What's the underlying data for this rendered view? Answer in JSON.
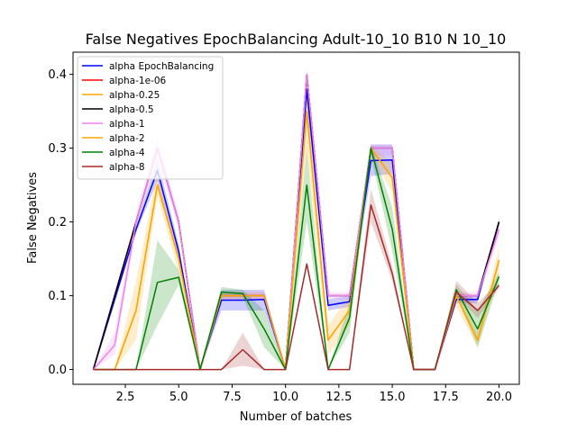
{
  "chart_data": {
    "type": "line",
    "title": "False Negatives EpochBalancing Adult-10_10 B10 N 10_10",
    "xlabel": "Number of batches",
    "ylabel": "False Negatives",
    "xlim": [
      0.05,
      20.95
    ],
    "ylim": [
      -0.02,
      0.43
    ],
    "xticks": [
      2.5,
      5.0,
      7.5,
      10.0,
      12.5,
      15.0,
      17.5,
      20.0
    ],
    "xtick_labels": [
      "2.5",
      "5.0",
      "7.5",
      "10.0",
      "12.5",
      "15.0",
      "17.5",
      "20.0"
    ],
    "yticks": [
      0.0,
      0.1,
      0.2,
      0.3,
      0.4
    ],
    "ytick_labels": [
      "0.0",
      "0.1",
      "0.2",
      "0.3",
      "0.4"
    ],
    "grid": false,
    "legend_position": "top-left",
    "x": [
      1,
      2,
      3,
      4,
      5,
      6,
      7,
      8,
      9,
      10,
      11,
      12,
      13,
      14,
      15,
      16,
      17,
      18,
      19,
      20
    ],
    "series": [
      {
        "name": "alpha EpochBalancing",
        "color": "#0000ff",
        "values": [
          0,
          0.095,
          0.19,
          0.27,
          0.16,
          0,
          0.094,
          0.094,
          0.095,
          0,
          0.38,
          0.087,
          0.092,
          0.283,
          0.284,
          0,
          0,
          0.095,
          0.095,
          0.2
        ],
        "band": [
          [
            0,
            0
          ],
          [
            0.09,
            0.1
          ],
          [
            0.185,
            0.195
          ],
          [
            0.255,
            0.285
          ],
          [
            0.15,
            0.17
          ],
          [
            0,
            0
          ],
          [
            0.08,
            0.108
          ],
          [
            0.08,
            0.108
          ],
          [
            0.08,
            0.108
          ],
          [
            0,
            0
          ],
          [
            0.36,
            0.4
          ],
          [
            0.08,
            0.095
          ],
          [
            0.085,
            0.1
          ],
          [
            0.262,
            0.305
          ],
          [
            0.265,
            0.305
          ],
          [
            0,
            0
          ],
          [
            0,
            0
          ],
          [
            0.09,
            0.1
          ],
          [
            0.09,
            0.1
          ],
          [
            0.195,
            0.205
          ]
        ]
      },
      {
        "name": "alpha-1e-06",
        "color": "#ff0000",
        "values": [
          0,
          0.1,
          0.2,
          0.3,
          0.2,
          0,
          0.1,
          0.1,
          0.1,
          0,
          0.4,
          0.1,
          0.1,
          0.3,
          0.3,
          0,
          0,
          0.1,
          0.1,
          0.2
        ],
        "band": null
      },
      {
        "name": "alpha-0.25",
        "color": "#ffa500",
        "values": [
          0,
          0,
          0.08,
          0.25,
          0.15,
          0,
          0.1,
          0.1,
          0.1,
          0,
          0.35,
          0.04,
          0.08,
          0.3,
          0.26,
          0,
          0,
          0.1,
          0.04,
          0.148
        ],
        "band": [
          [
            0,
            0
          ],
          [
            0,
            0
          ],
          [
            0.04,
            0.12
          ],
          [
            0.235,
            0.27
          ],
          [
            0.13,
            0.17
          ],
          [
            0,
            0
          ],
          [
            0.095,
            0.105
          ],
          [
            0.095,
            0.105
          ],
          [
            0.095,
            0.105
          ],
          [
            0,
            0
          ],
          [
            0.3,
            0.39
          ],
          [
            0.02,
            0.06
          ],
          [
            0.06,
            0.1
          ],
          [
            0.29,
            0.305
          ],
          [
            0.24,
            0.28
          ],
          [
            0,
            0
          ],
          [
            0,
            0
          ],
          [
            0.085,
            0.11
          ],
          [
            0.03,
            0.05
          ],
          [
            0.13,
            0.165
          ]
        ]
      },
      {
        "name": "alpha-0.5",
        "color": "#000000",
        "values": [
          0,
          0.1,
          0.2,
          0.3,
          0.2,
          0,
          0.1,
          0.1,
          0.1,
          0,
          0.4,
          0.1,
          0.1,
          0.3,
          0.3,
          0,
          0,
          0.1,
          0.1,
          0.2
        ],
        "band": null
      },
      {
        "name": "alpha-1",
        "color": "#ee82ee",
        "values": [
          0,
          0.033,
          0.2,
          0.3,
          0.2,
          0,
          0.1,
          0.1,
          0.1,
          0,
          0.4,
          0.1,
          0.1,
          0.3,
          0.3,
          0,
          0,
          0.1,
          0.1,
          0.19
        ],
        "band": [
          [
            0,
            0
          ],
          [
            0.02,
            0.05
          ],
          [
            0.19,
            0.21
          ],
          [
            0.285,
            0.315
          ],
          [
            0.19,
            0.21
          ],
          [
            0,
            0
          ],
          [
            0.095,
            0.105
          ],
          [
            0.095,
            0.105
          ],
          [
            0.095,
            0.105
          ],
          [
            0,
            0
          ],
          [
            0.39,
            0.41
          ],
          [
            0.095,
            0.105
          ],
          [
            0.095,
            0.105
          ],
          [
            0.29,
            0.305
          ],
          [
            0.29,
            0.305
          ],
          [
            0,
            0
          ],
          [
            0,
            0
          ],
          [
            0.095,
            0.105
          ],
          [
            0.095,
            0.105
          ],
          [
            0.18,
            0.2
          ]
        ]
      },
      {
        "name": "alpha-2",
        "color": "#ffa500",
        "values": [
          0,
          0,
          0.08,
          0.25,
          0.15,
          0,
          0.1,
          0.1,
          0.1,
          0,
          0.35,
          0.04,
          0.08,
          0.3,
          0.26,
          0,
          0,
          0.1,
          0.04,
          0.148
        ],
        "band": null
      },
      {
        "name": "alpha-4",
        "color": "#008000",
        "values": [
          0,
          0,
          0,
          0.118,
          0.125,
          0,
          0.105,
          0.103,
          0.055,
          0,
          0.25,
          0,
          0.07,
          0.3,
          0.19,
          0,
          0,
          0.108,
          0.055,
          0.126
        ],
        "band": [
          [
            0,
            0
          ],
          [
            0,
            0
          ],
          [
            0,
            0
          ],
          [
            0.06,
            0.175
          ],
          [
            0.115,
            0.135
          ],
          [
            0,
            0
          ],
          [
            0.098,
            0.112
          ],
          [
            0.098,
            0.108
          ],
          [
            0.03,
            0.08
          ],
          [
            0,
            0
          ],
          [
            0.2,
            0.3
          ],
          [
            0,
            0
          ],
          [
            0.05,
            0.09
          ],
          [
            0.29,
            0.305
          ],
          [
            0.16,
            0.22
          ],
          [
            0,
            0
          ],
          [
            0,
            0
          ],
          [
            0.1,
            0.115
          ],
          [
            0.03,
            0.08
          ],
          [
            0.12,
            0.132
          ]
        ]
      },
      {
        "name": "alpha-8",
        "color": "#a52a2a",
        "values": [
          0,
          0,
          0,
          0,
          0,
          0,
          0,
          0.027,
          0,
          0,
          0.143,
          0,
          0,
          0.223,
          0.13,
          0,
          0,
          0.105,
          0.08,
          0.114
        ],
        "band": [
          [
            0,
            0
          ],
          [
            0,
            0
          ],
          [
            0,
            0
          ],
          [
            0,
            0
          ],
          [
            0,
            0
          ],
          [
            0,
            0
          ],
          [
            0,
            0
          ],
          [
            0.005,
            0.05
          ],
          [
            0,
            0
          ],
          [
            0,
            0
          ],
          [
            0.14,
            0.146
          ],
          [
            0,
            0
          ],
          [
            0,
            0
          ],
          [
            0.2,
            0.245
          ],
          [
            0.12,
            0.14
          ],
          [
            0,
            0
          ],
          [
            0,
            0
          ],
          [
            0.1,
            0.12
          ],
          [
            0.07,
            0.09
          ],
          [
            0.11,
            0.118
          ]
        ]
      }
    ]
  }
}
